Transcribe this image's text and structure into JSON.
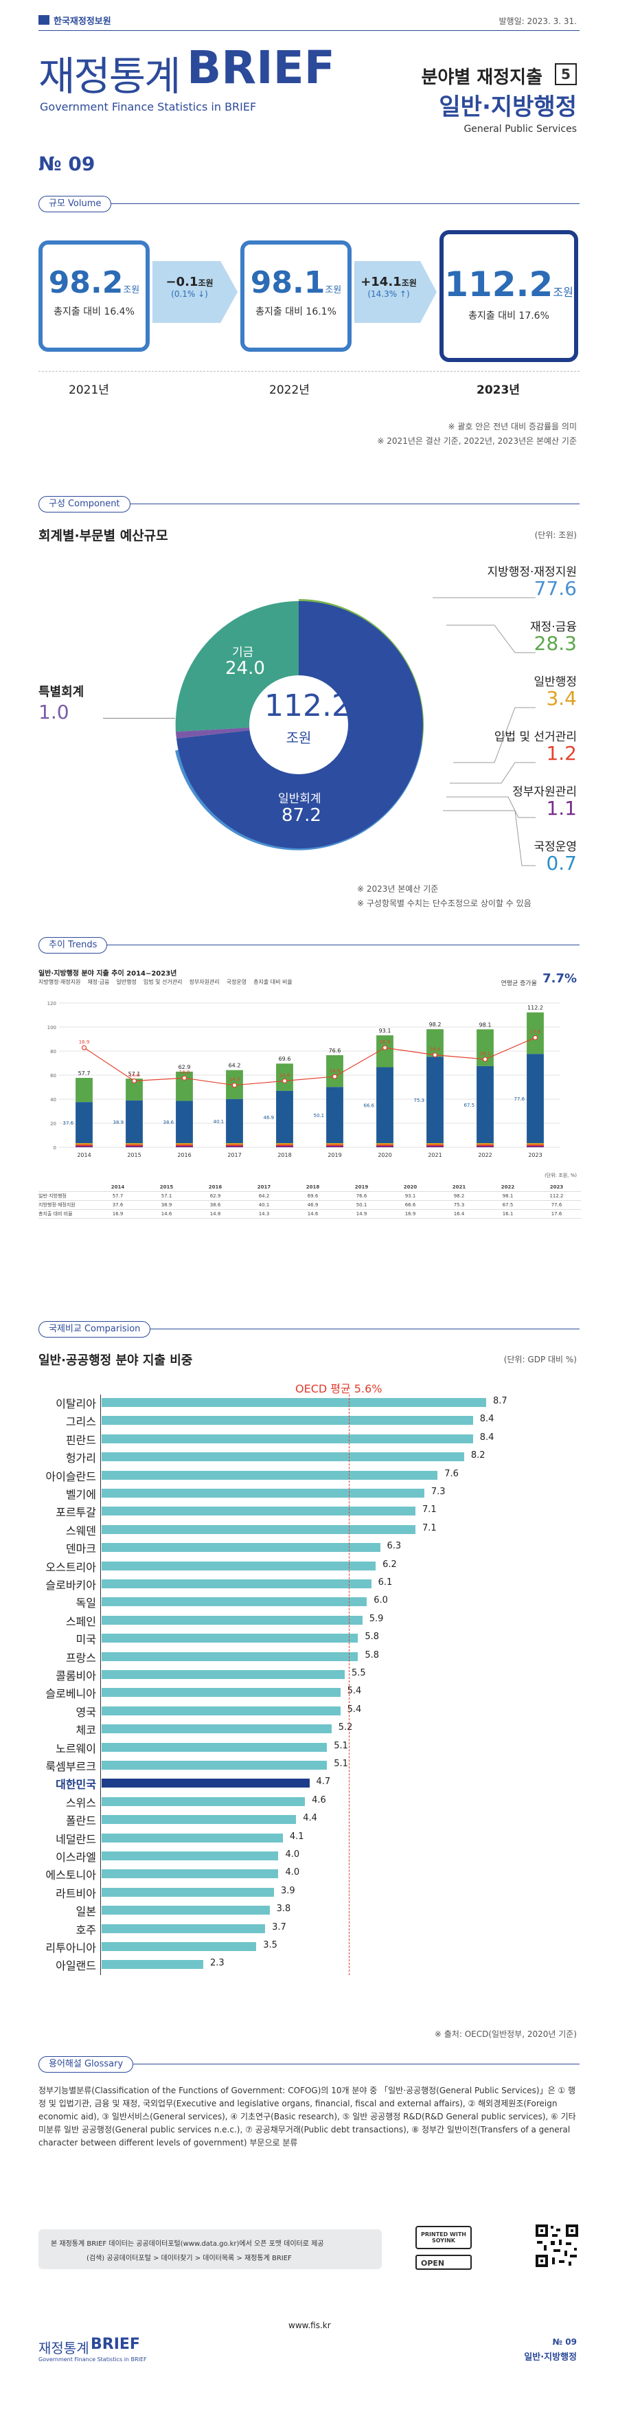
{
  "header": {
    "org": "한국재정정보원",
    "date": "발행일: 2023. 3. 31.",
    "title_kr": "재정통계",
    "title_en": "BRIEF",
    "subtitle_en": "Government Finance Statistics in BRIEF",
    "series": "분야별 재정지출",
    "series_no": "5",
    "topic": "일반·지방행정",
    "topic_en": "General Public Services",
    "issue": "№ 09"
  },
  "volume": {
    "section": "규모 Volume",
    "boxes": [
      {
        "value": "98.2",
        "unit": "조원",
        "share": "총지출 대비 16.4%",
        "year": "2021년"
      },
      {
        "value": "98.1",
        "unit": "조원",
        "share": "총지출 대비 16.1%",
        "year": "2022년"
      },
      {
        "value": "112.2",
        "unit": "조원",
        "share": "총지출 대비 17.6%",
        "year": "2023년"
      }
    ],
    "changes": [
      {
        "main": "−0.1",
        "unit": "조원",
        "pct": "(0.1% ↓)"
      },
      {
        "main": "+14.1",
        "unit": "조원",
        "pct": "(14.3% ↑)"
      }
    ],
    "notes": [
      "※ 괄호 안은 전년 대비 증감률을 의미",
      "※ 2021년은 결산 기준, 2022년, 2023년은 본예산 기준"
    ]
  },
  "component": {
    "section": "구성 Component",
    "title": "회계별·부문별 예산규모",
    "unit": "(단위: 조원)",
    "center_value": "112.2",
    "center_unit": "조원",
    "left_label": "특별회계",
    "left_value": "1.0",
    "inner": [
      {
        "label": "기금",
        "value": "24.0"
      },
      {
        "label": "일반회계",
        "value": "87.2"
      }
    ],
    "sectors": [
      {
        "label": "지방행정·재정지원",
        "value": "77.6",
        "color": "#4a8fd1"
      },
      {
        "label": "재정·금융",
        "value": "28.3",
        "color": "#5aa64a"
      },
      {
        "label": "일반행정",
        "value": "3.4",
        "color": "#e0a020"
      },
      {
        "label": "입법 및 선거관리",
        "value": "1.2",
        "color": "#e3422d"
      },
      {
        "label": "정부자원관리",
        "value": "1.1",
        "color": "#7a2a8c"
      },
      {
        "label": "국정운영",
        "value": "0.7",
        "color": "#2b8fc9"
      }
    ],
    "notes": [
      "※ 2023년 본예산 기준",
      "※ 구성항목별 수치는 단수조정으로 상이할 수 있음"
    ]
  },
  "trends": {
    "section": "추이 Trends",
    "title": "일반·지방행정 분야 지출 추이 2014~2023년",
    "cagr_label": "연평균 증가율",
    "cagr": "7.7%",
    "legend": [
      "지방행정·재정지원",
      "재정·금융",
      "일반행정",
      "입법 및 선거관리",
      "정부자원관리",
      "국정운영",
      "총지출 대비 비율"
    ],
    "unit_note": "(단위: 조원, %)",
    "table_header": [
      "",
      "2014",
      "2015",
      "2016",
      "2017",
      "2018",
      "2019",
      "2020",
      "2021",
      "2022",
      "2023"
    ]
  },
  "chart_data": {
    "type": "bar",
    "title": "일반·지방행정 분야 지출 추이 2014~2023년",
    "categories": [
      "2014",
      "2015",
      "2016",
      "2017",
      "2018",
      "2019",
      "2020",
      "2021",
      "2022",
      "2023"
    ],
    "series": [
      {
        "name": "총지출",
        "values": [
          57.7,
          57.1,
          62.9,
          64.2,
          69.6,
          76.6,
          93.1,
          98.2,
          98.1,
          112.2
        ]
      },
      {
        "name": "지방행정·재정지원",
        "values": [
          37.6,
          38.9,
          38.6,
          40.1,
          46.9,
          50.1,
          66.6,
          75.3,
          67.5,
          77.6
        ]
      },
      {
        "name": "총지출 대비 비율",
        "values": [
          16.9,
          14.6,
          14.8,
          14.3,
          14.6,
          14.9,
          16.9,
          16.4,
          16.1,
          17.6
        ]
      }
    ],
    "ylim": [
      0,
      120
    ]
  },
  "comparison": {
    "section": "국제비교 Comparision",
    "title": "일반·공공행정 분야 지출 비중",
    "unit": "(단위: GDP 대비 %)",
    "oecd_label": "OECD 평균 5.6%",
    "oecd_value": 5.6,
    "countries": [
      {
        "name": "이탈리아",
        "value": 8.7
      },
      {
        "name": "그리스",
        "value": 8.4
      },
      {
        "name": "핀란드",
        "value": 8.4
      },
      {
        "name": "헝가리",
        "value": 8.2
      },
      {
        "name": "아이슬란드",
        "value": 7.6
      },
      {
        "name": "벨기에",
        "value": 7.3
      },
      {
        "name": "포르투갈",
        "value": 7.1
      },
      {
        "name": "스웨덴",
        "value": 7.1
      },
      {
        "name": "덴마크",
        "value": 6.3
      },
      {
        "name": "오스트리아",
        "value": 6.2
      },
      {
        "name": "슬로바키아",
        "value": 6.1
      },
      {
        "name": "독일",
        "value": 6.0
      },
      {
        "name": "스페인",
        "value": 5.9
      },
      {
        "name": "미국",
        "value": 5.8
      },
      {
        "name": "프랑스",
        "value": 5.8
      },
      {
        "name": "콜롬비아",
        "value": 5.5
      },
      {
        "name": "슬로베니아",
        "value": 5.4
      },
      {
        "name": "영국",
        "value": 5.4
      },
      {
        "name": "체코",
        "value": 5.2
      },
      {
        "name": "노르웨이",
        "value": 5.1
      },
      {
        "name": "룩셈부르크",
        "value": 5.1
      },
      {
        "name": "대한민국",
        "value": 4.7,
        "highlight": true
      },
      {
        "name": "스위스",
        "value": 4.6
      },
      {
        "name": "폴란드",
        "value": 4.4
      },
      {
        "name": "네덜란드",
        "value": 4.1
      },
      {
        "name": "이스라엘",
        "value": 4.0
      },
      {
        "name": "에스토니아",
        "value": 4.0
      },
      {
        "name": "라트비아",
        "value": 3.9
      },
      {
        "name": "일본",
        "value": 3.8
      },
      {
        "name": "호주",
        "value": 3.7
      },
      {
        "name": "리투아니아",
        "value": 3.5
      },
      {
        "name": "아일랜드",
        "value": 2.3
      }
    ],
    "source": "※ 출처: OECD(일반정부, 2020년 기준)"
  },
  "glossary": {
    "section": "용어해설 Glossary",
    "text": "정부기능별분류(Classification of the Functions of Government: COFOG)의 10개 분야 중 「일반·공공행정(General Public Services)」은 ① 행정 및 입법기관, 금융 및 재정, 국외업무(Executive and legislative organs, financial, fiscal and external affairs), ② 해외경제원조(Foreign economic aid), ③ 일반서비스(General services), ④ 기초연구(Basic research), ⑤ 일반 공공행정 R&D(R&D General public services), ⑥ 기타 미분류 일반 공공행정(General public services n.e.c.), ⑦ 공공채무거래(Public debt transactions), ⑧ 정부간 일반이전(Transfers of a general character between different levels of government) 부문으로 분류"
  },
  "footer": {
    "info_line1": "본 재정통계 BRIEF 데이터는 공공데이터포털(www.data.go.kr)에서 오픈 포맷 데이터로 제공",
    "info_line2": "(검색) 공공데이터포털 > 데이터찾기 > 데이터목록 > 재정통계 BRIEF",
    "soyink": "PRINTED WITH SOYINK",
    "open": "OPEN",
    "url": "www.fis.kr",
    "logo_kr": "재정통계",
    "logo_en": "BRIEF",
    "logo_sub": "Government Finance Statistics in BRIEF",
    "issue": "№ 09",
    "topic": "일반·지방행정"
  }
}
